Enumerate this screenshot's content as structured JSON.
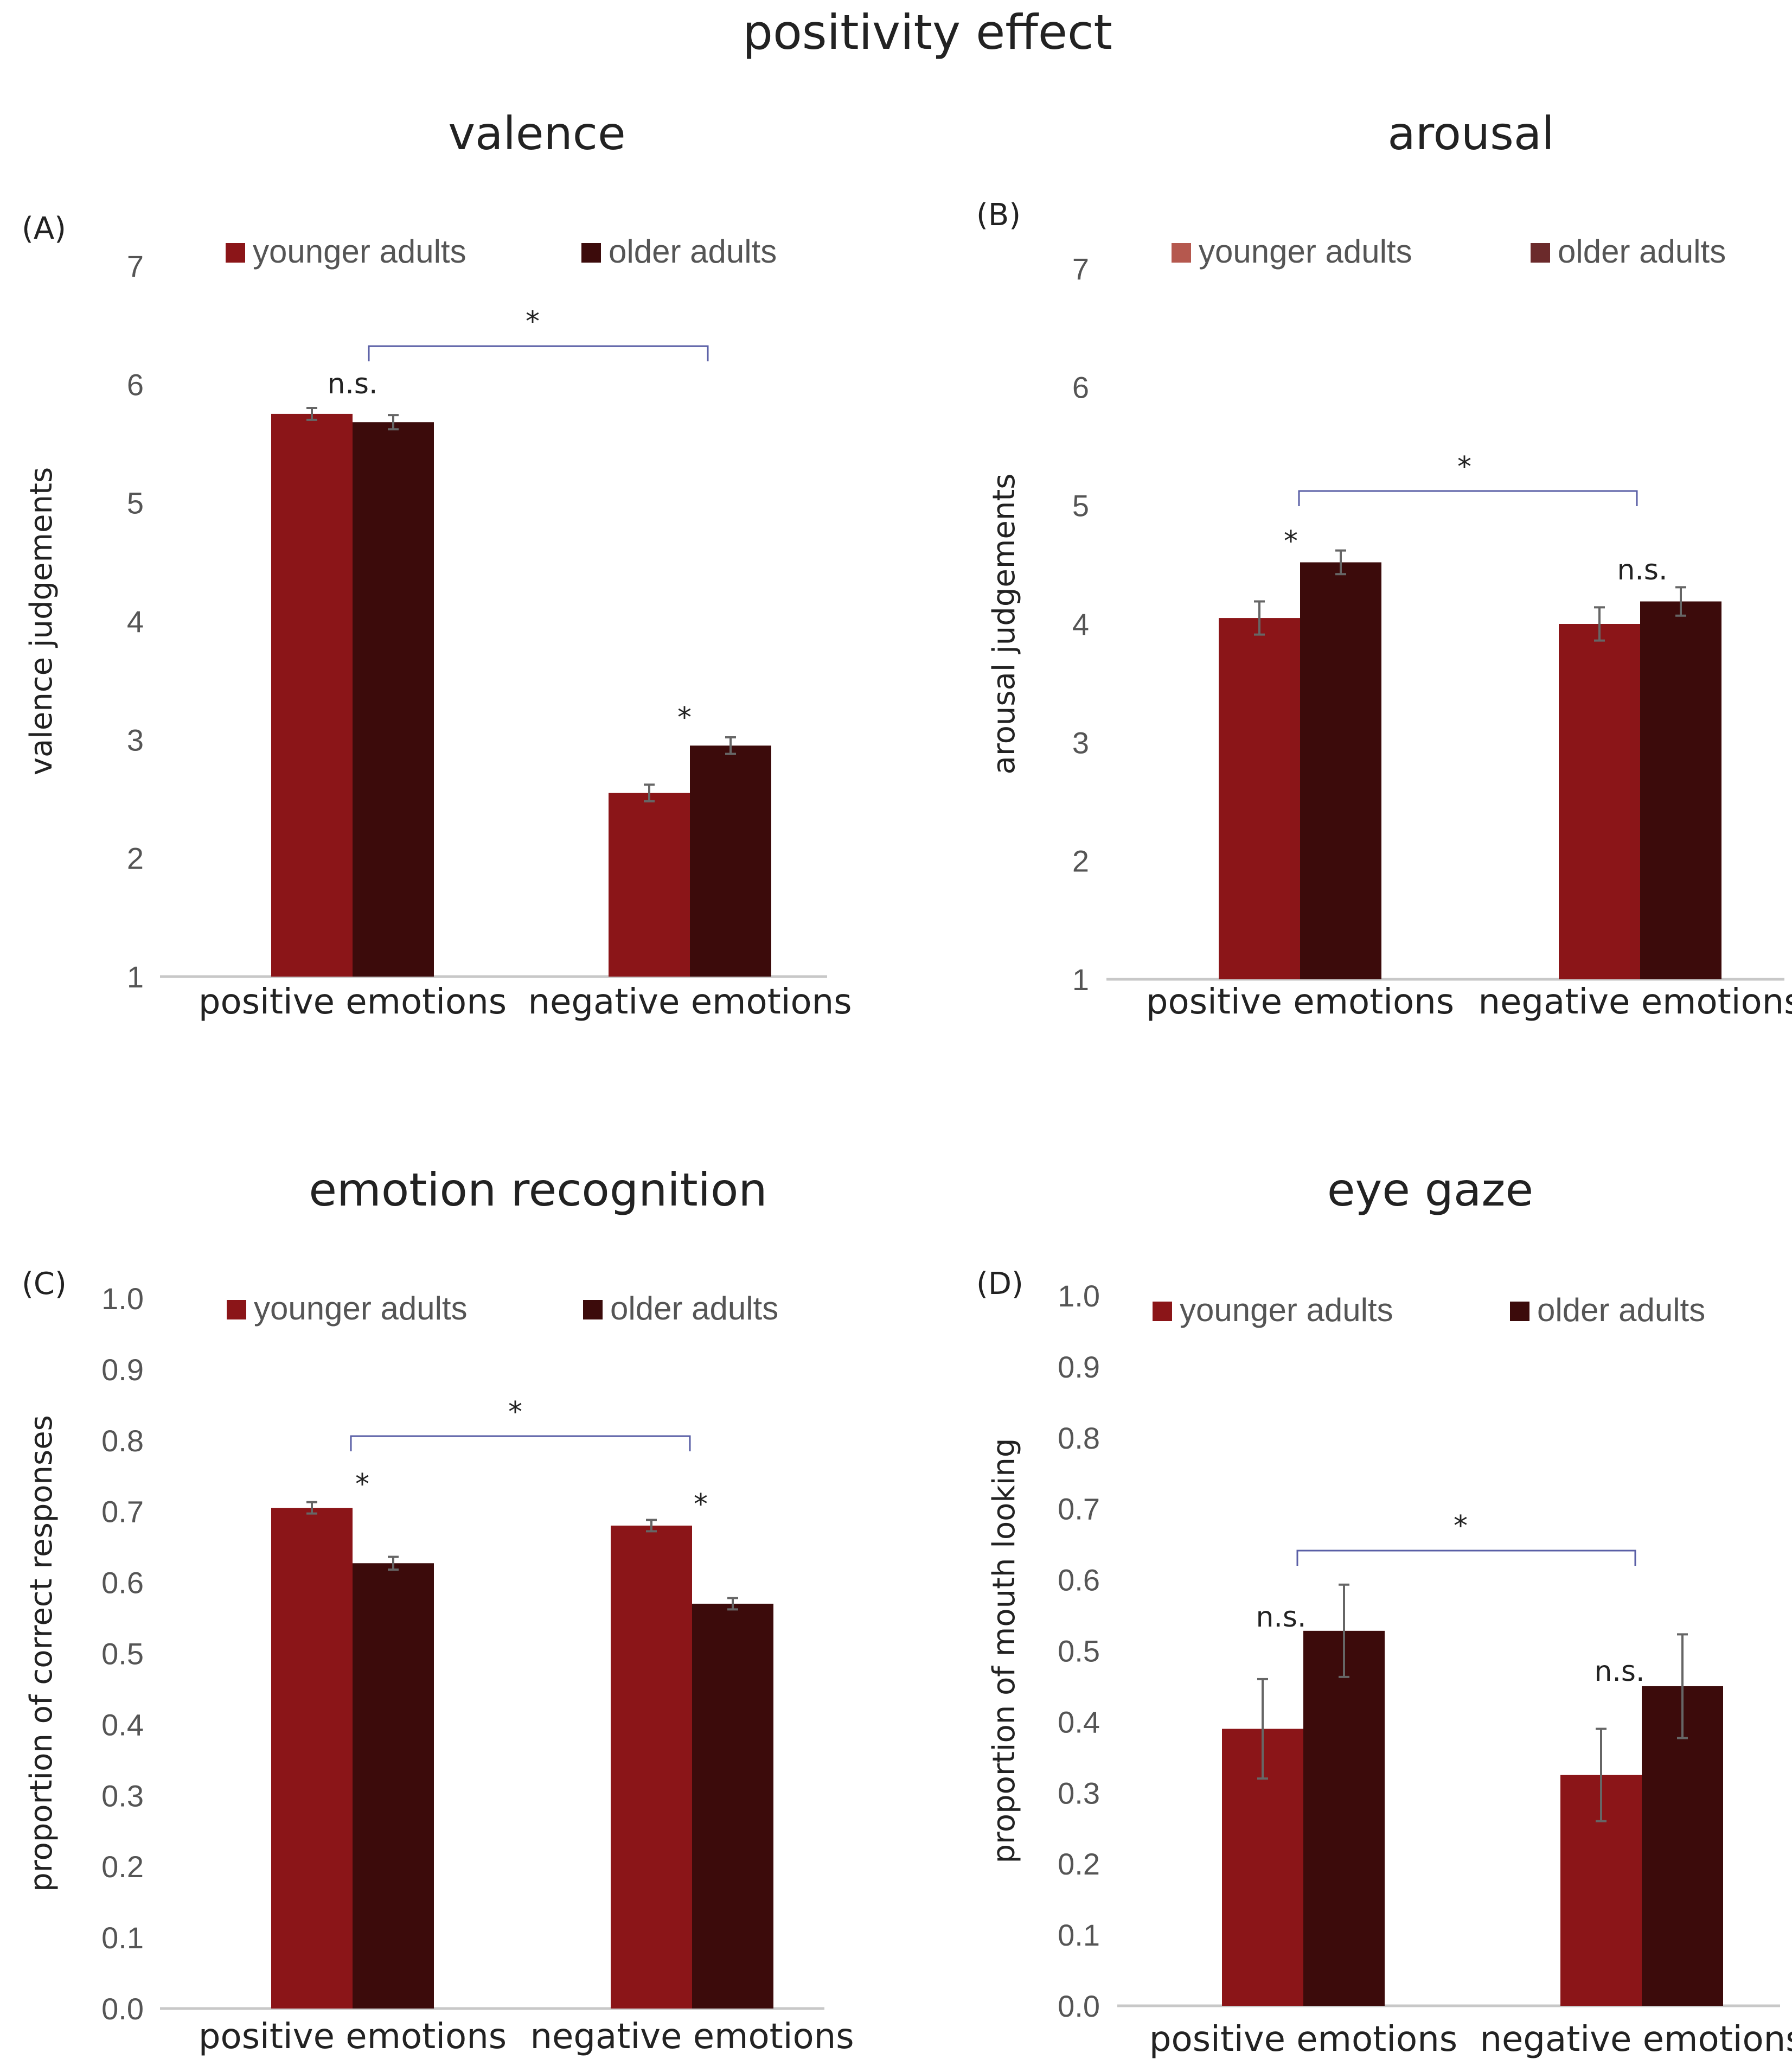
{
  "figure_title": "positivity effect",
  "colors": {
    "younger": "#8b1518",
    "older": "#3c0b0b",
    "younger_legend_B": "#b5584e",
    "older_legend_B": "#6b2a2b",
    "axis": "#c8c8c8",
    "tick_text": "#555555",
    "bracket": "#5a5fa6",
    "errorbar": "#666666"
  },
  "chart_data": [
    {
      "panel": "(A)",
      "title": "valence",
      "type": "bar",
      "ylabel": "valence judgements",
      "ylim": [
        1,
        7
      ],
      "yticks": [
        "1",
        "2",
        "3",
        "4",
        "5",
        "6",
        "7"
      ],
      "categories": [
        "positive emotions",
        "negative emotions"
      ],
      "series": [
        {
          "name": "younger adults",
          "values": [
            5.75,
            2.55
          ],
          "errors": [
            0.05,
            0.07
          ]
        },
        {
          "name": "older adults",
          "values": [
            5.68,
            2.95
          ],
          "errors": [
            0.06,
            0.07
          ]
        }
      ],
      "annotations": [
        "n.s.",
        "*",
        "*"
      ]
    },
    {
      "panel": "(B)",
      "title": "arousal",
      "type": "bar",
      "ylabel": "arousal  judgements",
      "ylim": [
        1,
        7
      ],
      "yticks": [
        "1",
        "2",
        "3",
        "4",
        "5",
        "6",
        "7"
      ],
      "categories": [
        "positive emotions",
        "negative emotions"
      ],
      "series": [
        {
          "name": "younger adults",
          "values": [
            4.05,
            4.0
          ],
          "errors": [
            0.14,
            0.14
          ]
        },
        {
          "name": "older adults",
          "values": [
            4.52,
            4.19
          ],
          "errors": [
            0.1,
            0.12
          ]
        }
      ],
      "annotations": [
        "*",
        "n.s.",
        "*"
      ]
    },
    {
      "panel": "(C)",
      "title": "emotion recognition",
      "type": "bar",
      "ylabel": "proportion of correct responses",
      "ylim": [
        0,
        1
      ],
      "yticks": [
        "0.0",
        "0.1",
        "0.2",
        "0.3",
        "0.4",
        "0.5",
        "0.6",
        "0.7",
        "0.8",
        "0.9",
        "1.0"
      ],
      "categories": [
        "positive emotions",
        "negative emotions"
      ],
      "series": [
        {
          "name": "younger adults",
          "values": [
            0.705,
            0.68
          ],
          "errors": [
            0.008,
            0.008
          ]
        },
        {
          "name": "older adults",
          "values": [
            0.627,
            0.57
          ],
          "errors": [
            0.009,
            0.008
          ]
        }
      ],
      "annotations": [
        "*",
        "*",
        "*"
      ]
    },
    {
      "panel": "(D)",
      "title": "eye gaze",
      "type": "bar",
      "ylabel": "proportion of mouth looking",
      "ylim": [
        0,
        1
      ],
      "yticks": [
        "0.0",
        "0.1",
        "0.2",
        "0.3",
        "0.4",
        "0.5",
        "0.6",
        "0.7",
        "0.8",
        "0.9",
        "1.0"
      ],
      "categories": [
        "positive emotions",
        "negative emotions"
      ],
      "series": [
        {
          "name": "younger adults",
          "values": [
            0.39,
            0.325
          ],
          "errors": [
            0.07,
            0.065
          ]
        },
        {
          "name": "older adults",
          "values": [
            0.528,
            0.45
          ],
          "errors": [
            0.065,
            0.073
          ]
        }
      ],
      "annotations": [
        "n.s.",
        "n.s.",
        "*"
      ]
    }
  ]
}
